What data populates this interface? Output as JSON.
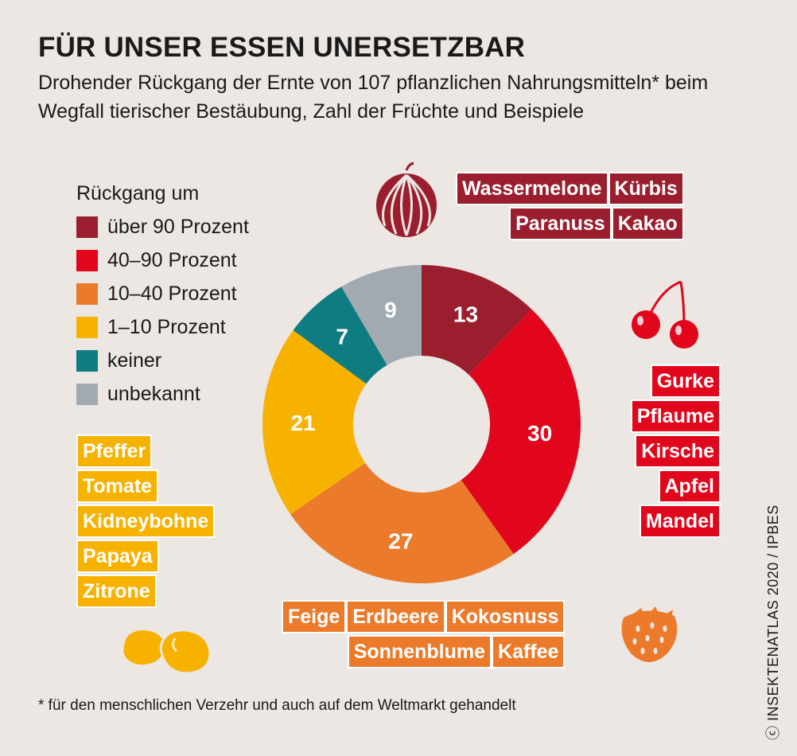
{
  "title": "FÜR UNSER ESSEN UNERSETZBAR",
  "subtitle": "Drohender Rückgang der Ernte von 107 pflanzlichen Nahrungsmitteln* beim Wegfall tierischer Bestäubung, Zahl der Früchte und Beispiele",
  "legend": {
    "title": "Rückgang um",
    "items": [
      {
        "label": "über 90 Prozent",
        "color": "#9b1e2e"
      },
      {
        "label": "40–90 Prozent",
        "color": "#e1061b"
      },
      {
        "label": "10–40 Prozent",
        "color": "#ec7a2b"
      },
      {
        "label": "1–10 Prozent",
        "color": "#f7b200"
      },
      {
        "label": "keiner",
        "color": "#0e7c80"
      },
      {
        "label": "unbekannt",
        "color": "#a2aab1"
      }
    ]
  },
  "examples": {
    "dark_row1": [
      "Wassermelone",
      "Kürbis"
    ],
    "dark_row2": [
      "Paranuss",
      "Kakao"
    ],
    "red": [
      "Gurke",
      "Pflaume",
      "Kirsche",
      "Apfel",
      "Mandel"
    ],
    "orange_row1": [
      "Feige",
      "Erdbeere",
      "Kokosnuss"
    ],
    "orange_row2": [
      "Sonnenblume",
      "Kaffee"
    ],
    "yellow": [
      "Pfeffer",
      "Tomate",
      "Kidneybohne",
      "Papaya",
      "Zitrone"
    ]
  },
  "icons": [
    "watermelon-icon",
    "cherry-icon",
    "strawberry-icon",
    "bean-icon"
  ],
  "footnote": "* für den menschlichen Verzehr und auch auf dem Weltmarkt gehandelt",
  "credit": "ⓒ INSEKTENATLAS 2020 / IPBES",
  "chart_data": {
    "type": "pie",
    "donut": true,
    "total": 107,
    "slices": [
      {
        "label": "über 90 Prozent",
        "value": 13,
        "color": "#9b1e2e"
      },
      {
        "label": "40–90 Prozent",
        "value": 30,
        "color": "#e1061b"
      },
      {
        "label": "10–40 Prozent",
        "value": 27,
        "color": "#ec7a2b"
      },
      {
        "label": "1–10 Prozent",
        "value": 21,
        "color": "#f7b200"
      },
      {
        "label": "keiner",
        "value": 7,
        "color": "#0e7c80"
      },
      {
        "label": "unbekannt",
        "value": 9,
        "color": "#a2aab1"
      }
    ]
  }
}
